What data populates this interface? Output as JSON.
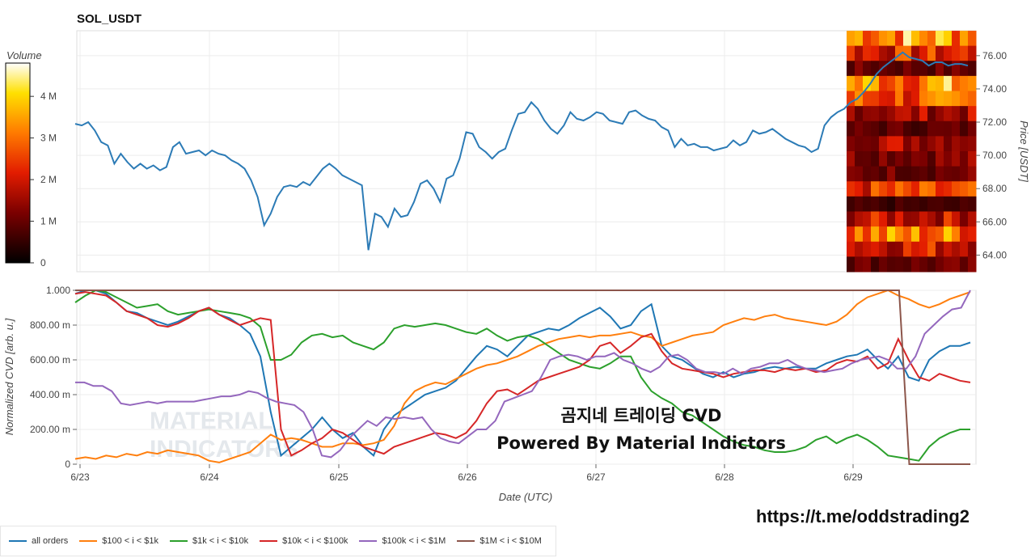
{
  "chart_data": [
    {
      "type": "line",
      "title": "SOL_USDT",
      "ylabel": "Price [USDT]",
      "ylim": [
        63,
        77.5
      ],
      "yticks": [
        "64.00",
        "66.00",
        "68.00",
        "70.00",
        "72.00",
        "74.00",
        "76.00"
      ],
      "grid": true,
      "series": [
        {
          "values": [
            71.9,
            71.8,
            72,
            71.5,
            70.8,
            70.6,
            69.5,
            70.1,
            69.6,
            69.2,
            69.5,
            69.2,
            69.4,
            69.1,
            69.3,
            70.5,
            70.8,
            70.1,
            70.2,
            70.3,
            70,
            70.3,
            70.1,
            70,
            69.7,
            69.5,
            69.2,
            68.5,
            67.5,
            65.8,
            66.5,
            67.5,
            68.1,
            68.2,
            68.1,
            68.4,
            68.2,
            68.7,
            69.2,
            69.5,
            69.2,
            68.8,
            68.6,
            68.4,
            68.2,
            64.3,
            66.5,
            66.3,
            65.7,
            66.8,
            66.3,
            66.4,
            67.2,
            68.3,
            68.5,
            68,
            67.2,
            68.6,
            68.8,
            69.8,
            71.4,
            71.3,
            70.5,
            70.2,
            69.8,
            70.2,
            70.4,
            71.5,
            72.5,
            72.6,
            73.2,
            72.8,
            72.1,
            71.6,
            71.3,
            71.8,
            72.6,
            72.2,
            72.1,
            72.3,
            72.6,
            72.5,
            72.1,
            72,
            71.9,
            72.6,
            72.7,
            72.4,
            72.2,
            72.1,
            71.7,
            71.5,
            70.5,
            71,
            70.6,
            70.7,
            70.5,
            70.5,
            70.3,
            70.4,
            70.5,
            70.9,
            70.6,
            70.8,
            71.5,
            71.3,
            71.4,
            71.6,
            71.3,
            71,
            70.8,
            70.6,
            70.5,
            70.2,
            70.4,
            71.8,
            72.3,
            72.6,
            72.8,
            73.2,
            73.4,
            73.8,
            74.3,
            74.9,
            75.3,
            75.6,
            75.9,
            76.2,
            75.9,
            75.8,
            75.7,
            75.4,
            75.6,
            75.6,
            75.4,
            75.5,
            75.5,
            75.4
          ]
        }
      ],
      "colorbar": {
        "label": "Volume",
        "ticks": [
          "0",
          "1 M",
          "2 M",
          "3 M",
          "4 M"
        ],
        "range": [
          0,
          4.8
        ]
      },
      "heatmap_bands": [
        [
          76.9,
          3.5
        ],
        [
          75.5,
          2.2
        ],
        [
          74.6,
          1.0
        ],
        [
          73.6,
          3.3
        ],
        [
          72.6,
          2.6
        ],
        [
          71.8,
          1.6
        ],
        [
          71.0,
          0.9
        ],
        [
          70.1,
          1.7
        ],
        [
          69.2,
          1.3
        ],
        [
          68.2,
          1.1
        ],
        [
          67.3,
          2.3
        ],
        [
          66.4,
          0.6
        ],
        [
          65.5,
          1.9
        ],
        [
          64.5,
          3.0
        ],
        [
          63.7,
          2.1
        ],
        [
          63.2,
          1.0
        ]
      ]
    },
    {
      "type": "line",
      "xlabel": "Date (UTC)",
      "ylabel": "Normalized CVD [arb. u.]",
      "ylim": [
        0,
        1
      ],
      "yticks": [
        "0",
        "200.00 m",
        "400.00 m",
        "600.00 m",
        "800.00 m",
        "1.000"
      ],
      "x_ticks": [
        "6/23",
        "6/24",
        "6/25",
        "6/26",
        "6/27",
        "6/28",
        "6/29"
      ],
      "grid": true,
      "legend_position": "bottom",
      "series": [
        {
          "name": "all orders",
          "color": "#1f77b4",
          "values": [
            0.98,
            1,
            1,
            0.98,
            0.93,
            0.88,
            0.87,
            0.84,
            0.82,
            0.8,
            0.82,
            0.85,
            0.88,
            0.9,
            0.86,
            0.84,
            0.8,
            0.75,
            0.62,
            0.3,
            0.05,
            0.1,
            0.15,
            0.2,
            0.27,
            0.2,
            0.15,
            0.18,
            0.1,
            0.05,
            0.2,
            0.28,
            0.32,
            0.36,
            0.4,
            0.42,
            0.44,
            0.48,
            0.55,
            0.62,
            0.68,
            0.66,
            0.62,
            0.68,
            0.74,
            0.76,
            0.78,
            0.77,
            0.8,
            0.84,
            0.87,
            0.9,
            0.85,
            0.78,
            0.8,
            0.88,
            0.92,
            0.68,
            0.62,
            0.6,
            0.56,
            0.52,
            0.5,
            0.53,
            0.5,
            0.52,
            0.53,
            0.55,
            0.56,
            0.55,
            0.56,
            0.55,
            0.55,
            0.58,
            0.6,
            0.62,
            0.63,
            0.66,
            0.6,
            0.55,
            0.62,
            0.5,
            0.48,
            0.6,
            0.65,
            0.68,
            0.68,
            0.7
          ]
        },
        {
          "name": "$100 < i < $1k",
          "color": "#ff7f0e",
          "values": [
            0.03,
            0.04,
            0.03,
            0.05,
            0.04,
            0.06,
            0.05,
            0.07,
            0.06,
            0.08,
            0.07,
            0.06,
            0.05,
            0.02,
            0.01,
            0.03,
            0.05,
            0.07,
            0.12,
            0.17,
            0.14,
            0.15,
            0.14,
            0.12,
            0.1,
            0.1,
            0.12,
            0.12,
            0.11,
            0.12,
            0.14,
            0.22,
            0.35,
            0.42,
            0.45,
            0.47,
            0.46,
            0.49,
            0.52,
            0.55,
            0.57,
            0.58,
            0.6,
            0.62,
            0.65,
            0.68,
            0.7,
            0.72,
            0.73,
            0.74,
            0.73,
            0.74,
            0.74,
            0.75,
            0.76,
            0.74,
            0.73,
            0.68,
            0.7,
            0.72,
            0.74,
            0.75,
            0.76,
            0.8,
            0.82,
            0.84,
            0.83,
            0.85,
            0.86,
            0.84,
            0.83,
            0.82,
            0.81,
            0.8,
            0.82,
            0.86,
            0.92,
            0.96,
            0.98,
            1,
            0.97,
            0.95,
            0.92,
            0.9,
            0.92,
            0.95,
            0.97,
            0.99
          ]
        },
        {
          "name": "$1k < i < $10k",
          "color": "#2ca02c",
          "values": [
            0.93,
            0.97,
            1,
            0.99,
            0.96,
            0.93,
            0.9,
            0.91,
            0.92,
            0.88,
            0.86,
            0.87,
            0.88,
            0.89,
            0.88,
            0.87,
            0.86,
            0.84,
            0.79,
            0.6,
            0.6,
            0.63,
            0.7,
            0.74,
            0.75,
            0.73,
            0.74,
            0.7,
            0.68,
            0.66,
            0.7,
            0.78,
            0.8,
            0.79,
            0.8,
            0.81,
            0.8,
            0.78,
            0.76,
            0.75,
            0.78,
            0.74,
            0.71,
            0.73,
            0.74,
            0.72,
            0.68,
            0.64,
            0.6,
            0.58,
            0.56,
            0.55,
            0.58,
            0.62,
            0.62,
            0.5,
            0.42,
            0.38,
            0.35,
            0.3,
            0.28,
            0.24,
            0.2,
            0.16,
            0.13,
            0.11,
            0.1,
            0.08,
            0.07,
            0.07,
            0.08,
            0.1,
            0.14,
            0.16,
            0.12,
            0.15,
            0.17,
            0.14,
            0.1,
            0.05,
            0.04,
            0.03,
            0.02,
            0.1,
            0.15,
            0.18,
            0.2,
            0.2
          ]
        },
        {
          "name": "$10k < i < $100k",
          "color": "#d62728",
          "values": [
            0.98,
            0.99,
            0.98,
            0.97,
            0.93,
            0.88,
            0.86,
            0.84,
            0.8,
            0.79,
            0.81,
            0.84,
            0.88,
            0.9,
            0.86,
            0.83,
            0.8,
            0.82,
            0.84,
            0.83,
            0.2,
            0.05,
            0.08,
            0.12,
            0.15,
            0.2,
            0.18,
            0.14,
            0.1,
            0.08,
            0.06,
            0.1,
            0.12,
            0.14,
            0.16,
            0.18,
            0.17,
            0.15,
            0.18,
            0.25,
            0.35,
            0.42,
            0.43,
            0.4,
            0.44,
            0.48,
            0.5,
            0.52,
            0.54,
            0.56,
            0.6,
            0.68,
            0.7,
            0.64,
            0.68,
            0.73,
            0.75,
            0.65,
            0.58,
            0.55,
            0.54,
            0.53,
            0.52,
            0.5,
            0.52,
            0.53,
            0.54,
            0.54,
            0.53,
            0.55,
            0.54,
            0.55,
            0.53,
            0.54,
            0.58,
            0.6,
            0.59,
            0.62,
            0.55,
            0.58,
            0.72,
            0.6,
            0.5,
            0.48,
            0.52,
            0.5,
            0.48,
            0.47
          ]
        },
        {
          "name": "$100k < i < $1M",
          "color": "#9467bd",
          "values": [
            0.47,
            0.47,
            0.45,
            0.45,
            0.42,
            0.35,
            0.34,
            0.35,
            0.36,
            0.35,
            0.36,
            0.36,
            0.36,
            0.36,
            0.37,
            0.38,
            0.39,
            0.39,
            0.4,
            0.42,
            0.41,
            0.38,
            0.36,
            0.35,
            0.34,
            0.3,
            0.2,
            0.05,
            0.04,
            0.08,
            0.15,
            0.2,
            0.25,
            0.22,
            0.27,
            0.26,
            0.27,
            0.26,
            0.27,
            0.2,
            0.15,
            0.13,
            0.12,
            0.16,
            0.2,
            0.2,
            0.25,
            0.36,
            0.38,
            0.4,
            0.42,
            0.5,
            0.6,
            0.62,
            0.63,
            0.62,
            0.6,
            0.62,
            0.62,
            0.64,
            0.6,
            0.58,
            0.55,
            0.53,
            0.56,
            0.62,
            0.63,
            0.6,
            0.55,
            0.53,
            0.53,
            0.52,
            0.55,
            0.52,
            0.55,
            0.56,
            0.58,
            0.58,
            0.6,
            0.57,
            0.55,
            0.54,
            0.53,
            0.54,
            0.55,
            0.58,
            0.6,
            0.61,
            0.62,
            0.6,
            0.55,
            0.55,
            0.62,
            0.75,
            0.8,
            0.85,
            0.89,
            0.9,
            1
          ]
        },
        {
          "name": "$1M < i < $10M",
          "color": "#8c564b",
          "values": [
            1,
            1,
            1,
            1,
            1,
            1,
            1,
            1,
            1,
            1,
            1,
            1,
            1,
            1,
            1,
            1,
            1,
            1,
            1,
            1,
            1,
            1,
            1,
            1,
            1,
            1,
            1,
            1,
            1,
            1,
            1,
            1,
            1,
            1,
            1,
            1,
            1,
            1,
            1,
            1,
            1,
            1,
            1,
            1,
            1,
            1,
            1,
            1,
            1,
            1,
            1,
            1,
            1,
            1,
            1,
            1,
            1,
            1,
            1,
            1,
            1,
            1,
            1,
            1,
            1,
            1,
            1,
            1,
            1,
            1,
            1,
            1,
            1,
            1,
            1,
            1,
            1,
            1,
            1,
            1,
            1,
            1,
            0,
            0,
            0,
            0,
            0,
            0,
            0
          ]
        }
      ]
    }
  ],
  "overlay": {
    "line1": "곰지네 트레이딩 CVD",
    "line2": "Powered By Material Indictors"
  },
  "watermark": {
    "line1": "MATERIAL",
    "line2": "INDICATORS"
  },
  "url": "https://t.me/oddstrading2"
}
